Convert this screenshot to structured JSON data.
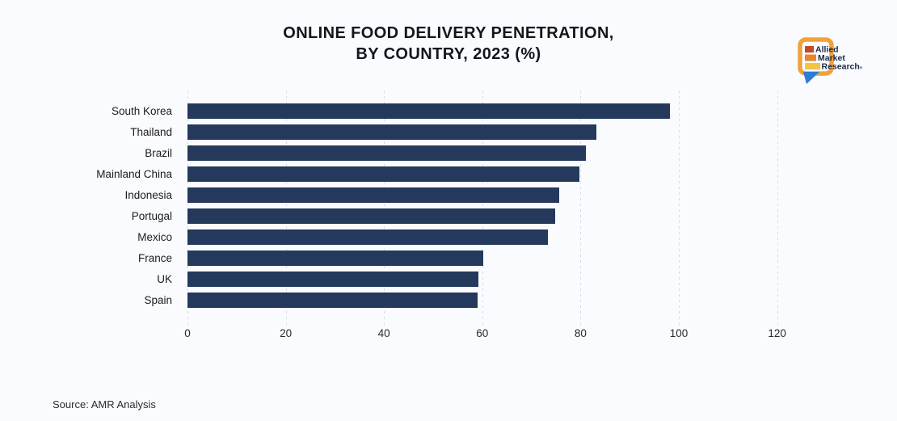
{
  "title": {
    "line1": "ONLINE FOOD DELIVERY PENETRATION,",
    "line2": "BY COUNTRY, 2023 (%)"
  },
  "logo": {
    "lines": [
      "Allied",
      "Market",
      "Research"
    ],
    "reg": "®",
    "frame_color": "#F0A23B",
    "tail_color": "#2E7CD4",
    "bar_colors": [
      "#BE4A27",
      "#E6872B",
      "#F2C444"
    ],
    "text_color": "#1B2944"
  },
  "source": {
    "text": "Source: AMR Analysis"
  },
  "chart_data": {
    "type": "bar",
    "orientation": "horizontal",
    "title": "ONLINE FOOD DELIVERY PENETRATION, BY COUNTRY, 2023 (%)",
    "categories": [
      "South Korea",
      "Thailand",
      "Brazil",
      "Mainland China",
      "Indonesia",
      "Portugal",
      "Mexico",
      "France",
      "UK",
      "Spain"
    ],
    "values": [
      98.2,
      83.2,
      81.1,
      79.8,
      75.7,
      74.8,
      73.3,
      60.2,
      59.2,
      59.0
    ],
    "xlabel": "",
    "ylabel": "",
    "xticks": [
      0,
      20,
      40,
      60,
      80,
      100,
      120
    ],
    "xlim": [
      0,
      125
    ],
    "grid": "vertical-dashed",
    "legend": "none",
    "bar_color": "#24395B",
    "gridline_color": "#D8DBE2"
  }
}
